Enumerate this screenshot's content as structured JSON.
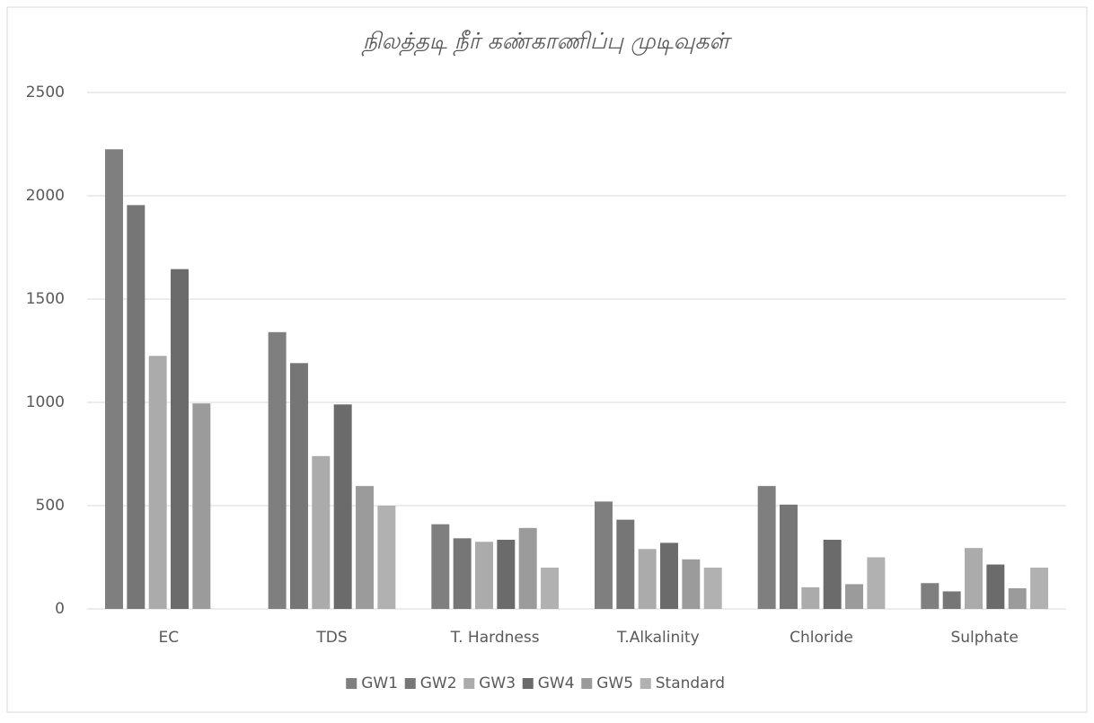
{
  "chart_data": {
    "type": "bar",
    "title": "நிலத்தடி நீர் கண்காணிப்பு முடிவுகள்",
    "categories": [
      "EC",
      "TDS",
      "T. Hardness",
      "T.Alkalinity",
      "Chloride",
      "Sulphate"
    ],
    "series": [
      {
        "name": "GW1",
        "color": "#7f7f7f",
        "values": [
          2225,
          1340,
          410,
          520,
          595,
          125
        ]
      },
      {
        "name": "GW2",
        "color": "#767676",
        "values": [
          1955,
          1190,
          342,
          432,
          505,
          85
        ]
      },
      {
        "name": "GW3",
        "color": "#ababab",
        "values": [
          1225,
          740,
          325,
          290,
          105,
          295
        ]
      },
      {
        "name": "GW4",
        "color": "#6b6b6b",
        "values": [
          1645,
          990,
          335,
          320,
          335,
          215
        ]
      },
      {
        "name": "GW5",
        "color": "#9b9b9b",
        "values": [
          995,
          595,
          392,
          240,
          120,
          100
        ]
      },
      {
        "name": "Standard",
        "color": "#b1b1b1",
        "values": [
          null,
          500,
          200,
          200,
          250,
          200
        ]
      }
    ],
    "ylim": [
      0,
      2500
    ],
    "yticks": [
      0,
      500,
      1000,
      1500,
      2000,
      2500
    ],
    "grid": true,
    "legend": "bottom"
  }
}
